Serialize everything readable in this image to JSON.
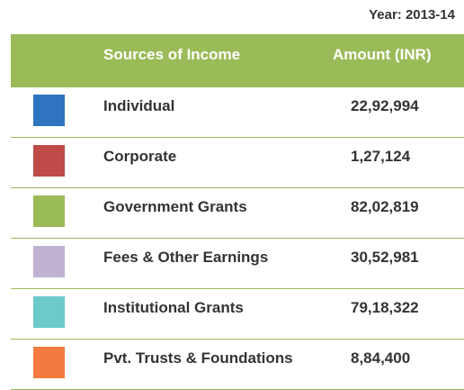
{
  "year_label": "Year: 2013-14",
  "table": {
    "header": {
      "color": "#9bbb59",
      "columns": [
        "Sources of Income",
        "Amount (INR)"
      ]
    },
    "rows": [
      {
        "color": "#2e74c0",
        "source": "Individual",
        "amount": "22,92,994"
      },
      {
        "color": "#be4b48",
        "source": "Corporate",
        "amount": "1,27,124"
      },
      {
        "color": "#9bbb59",
        "source": "Government Grants",
        "amount": "82,02,819"
      },
      {
        "color": "#bfb2d3",
        "source": "Fees & Other Earnings",
        "amount": "30,52,981"
      },
      {
        "color": "#6ccac9",
        "source": "Institutional Grants",
        "amount": "79,18,322"
      },
      {
        "color": "#f47b3f",
        "source": "Pvt. Trusts & Foundations",
        "amount": "8,84,400"
      }
    ]
  }
}
